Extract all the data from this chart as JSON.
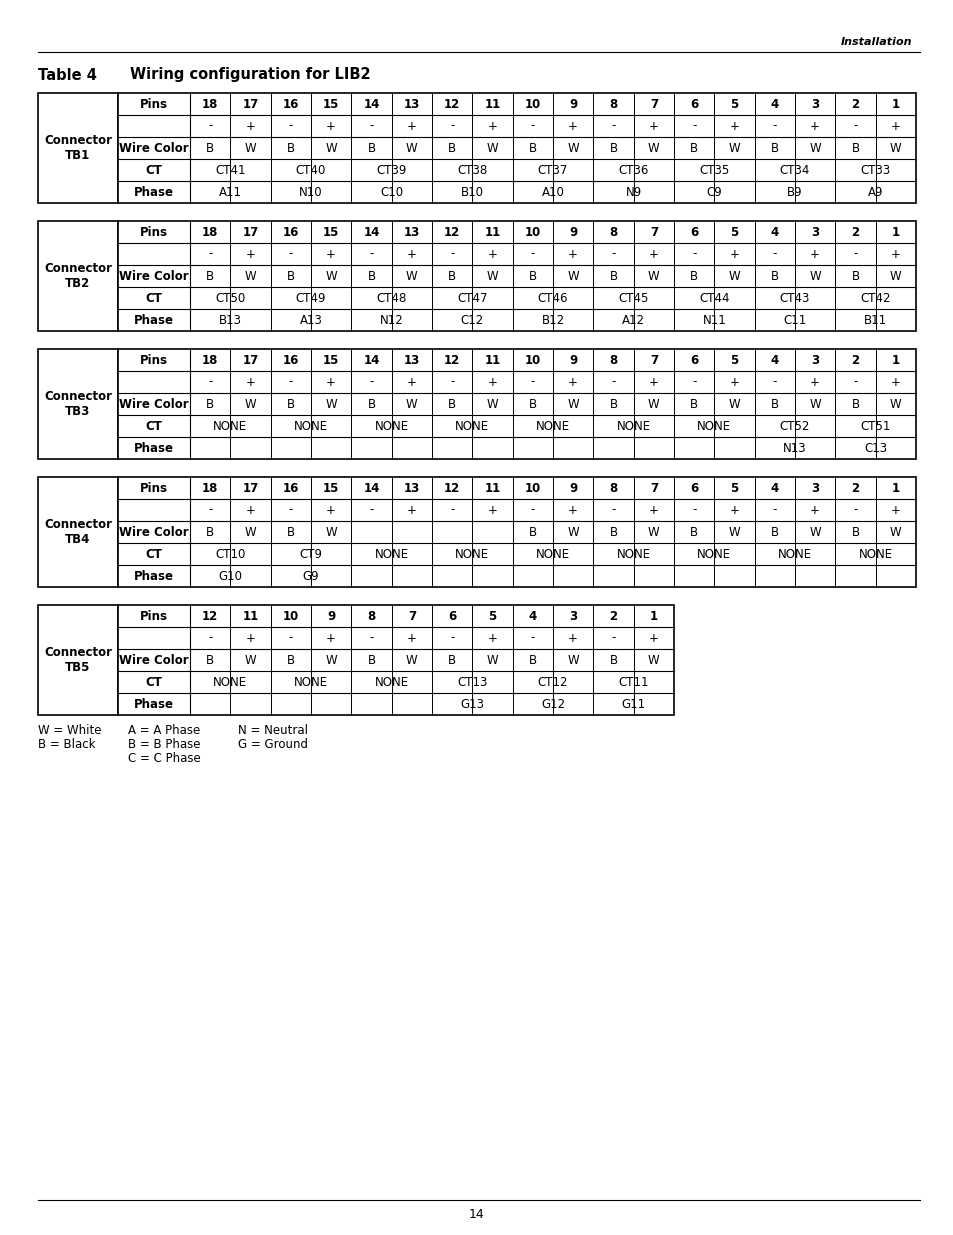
{
  "title_label": "Table 4",
  "title_text": "Wiring configuration for LIB2",
  "header_right": "Installation",
  "page_number": "14",
  "tables": [
    {
      "connector": "Connector\nTB1",
      "pins": [
        "18",
        "17",
        "16",
        "15",
        "14",
        "13",
        "12",
        "11",
        "10",
        "9",
        "8",
        "7",
        "6",
        "5",
        "4",
        "3",
        "2",
        "1"
      ],
      "polarity": [
        "-",
        "+",
        "-",
        "+",
        "-",
        "+",
        "-",
        "+",
        "-",
        "+",
        "-",
        "+",
        "-",
        "+",
        "-",
        "+",
        "-",
        "+"
      ],
      "wire_color": [
        "B",
        "W",
        "B",
        "W",
        "B",
        "W",
        "B",
        "W",
        "B",
        "W",
        "B",
        "W",
        "B",
        "W",
        "B",
        "W",
        "B",
        "W"
      ],
      "ct_spans": [
        {
          "text": "CT41",
          "cols": [
            0,
            1
          ]
        },
        {
          "text": "CT40",
          "cols": [
            2,
            3
          ]
        },
        {
          "text": "CT39",
          "cols": [
            4,
            5
          ]
        },
        {
          "text": "CT38",
          "cols": [
            6,
            7
          ]
        },
        {
          "text": "CT37",
          "cols": [
            8,
            9
          ]
        },
        {
          "text": "CT36",
          "cols": [
            10,
            11
          ]
        },
        {
          "text": "CT35",
          "cols": [
            12,
            13
          ]
        },
        {
          "text": "CT34",
          "cols": [
            14,
            15
          ]
        },
        {
          "text": "CT33",
          "cols": [
            16,
            17
          ]
        }
      ],
      "phase_spans": [
        {
          "text": "A11",
          "cols": [
            0,
            1
          ]
        },
        {
          "text": "N10",
          "cols": [
            2,
            3
          ]
        },
        {
          "text": "C10",
          "cols": [
            4,
            5
          ]
        },
        {
          "text": "B10",
          "cols": [
            6,
            7
          ]
        },
        {
          "text": "A10",
          "cols": [
            8,
            9
          ]
        },
        {
          "text": "N9",
          "cols": [
            10,
            11
          ]
        },
        {
          "text": "C9",
          "cols": [
            12,
            13
          ]
        },
        {
          "text": "B9",
          "cols": [
            14,
            15
          ]
        },
        {
          "text": "A9",
          "cols": [
            16,
            17
          ]
        }
      ]
    },
    {
      "connector": "Connector\nTB2",
      "pins": [
        "18",
        "17",
        "16",
        "15",
        "14",
        "13",
        "12",
        "11",
        "10",
        "9",
        "8",
        "7",
        "6",
        "5",
        "4",
        "3",
        "2",
        "1"
      ],
      "polarity": [
        "-",
        "+",
        "-",
        "+",
        "-",
        "+",
        "-",
        "+",
        "-",
        "+",
        "-",
        "+",
        "-",
        "+",
        "-",
        "+",
        "-",
        "+"
      ],
      "wire_color": [
        "B",
        "W",
        "B",
        "W",
        "B",
        "W",
        "B",
        "W",
        "B",
        "W",
        "B",
        "W",
        "B",
        "W",
        "B",
        "W",
        "B",
        "W"
      ],
      "ct_spans": [
        {
          "text": "CT50",
          "cols": [
            0,
            1
          ]
        },
        {
          "text": "CT49",
          "cols": [
            2,
            3
          ]
        },
        {
          "text": "CT48",
          "cols": [
            4,
            5
          ]
        },
        {
          "text": "CT47",
          "cols": [
            6,
            7
          ]
        },
        {
          "text": "CT46",
          "cols": [
            8,
            9
          ]
        },
        {
          "text": "CT45",
          "cols": [
            10,
            11
          ]
        },
        {
          "text": "CT44",
          "cols": [
            12,
            13
          ]
        },
        {
          "text": "CT43",
          "cols": [
            14,
            15
          ]
        },
        {
          "text": "CT42",
          "cols": [
            16,
            17
          ]
        }
      ],
      "phase_spans": [
        {
          "text": "B13",
          "cols": [
            0,
            1
          ]
        },
        {
          "text": "A13",
          "cols": [
            2,
            3
          ]
        },
        {
          "text": "N12",
          "cols": [
            4,
            5
          ]
        },
        {
          "text": "C12",
          "cols": [
            6,
            7
          ]
        },
        {
          "text": "B12",
          "cols": [
            8,
            9
          ]
        },
        {
          "text": "A12",
          "cols": [
            10,
            11
          ]
        },
        {
          "text": "N11",
          "cols": [
            12,
            13
          ]
        },
        {
          "text": "C11",
          "cols": [
            14,
            15
          ]
        },
        {
          "text": "B11",
          "cols": [
            16,
            17
          ]
        }
      ]
    },
    {
      "connector": "Connector\nTB3",
      "pins": [
        "18",
        "17",
        "16",
        "15",
        "14",
        "13",
        "12",
        "11",
        "10",
        "9",
        "8",
        "7",
        "6",
        "5",
        "4",
        "3",
        "2",
        "1"
      ],
      "polarity": [
        "-",
        "+",
        "-",
        "+",
        "-",
        "+",
        "-",
        "+",
        "-",
        "+",
        "-",
        "+",
        "-",
        "+",
        "-",
        "+",
        "-",
        "+"
      ],
      "wire_color": [
        "B",
        "W",
        "B",
        "W",
        "B",
        "W",
        "B",
        "W",
        "B",
        "W",
        "B",
        "W",
        "B",
        "W",
        "B",
        "W",
        "B",
        "W"
      ],
      "ct_spans": [
        {
          "text": "NONE",
          "cols": [
            0,
            1
          ]
        },
        {
          "text": "NONE",
          "cols": [
            2,
            3
          ]
        },
        {
          "text": "NONE",
          "cols": [
            4,
            5
          ]
        },
        {
          "text": "NONE",
          "cols": [
            6,
            7
          ]
        },
        {
          "text": "NONE",
          "cols": [
            8,
            9
          ]
        },
        {
          "text": "NONE",
          "cols": [
            10,
            11
          ]
        },
        {
          "text": "NONE",
          "cols": [
            12,
            13
          ]
        },
        {
          "text": "CT52",
          "cols": [
            14,
            15
          ]
        },
        {
          "text": "CT51",
          "cols": [
            16,
            17
          ]
        }
      ],
      "phase_spans": [
        {
          "text": "",
          "cols": [
            0,
            1
          ]
        },
        {
          "text": "",
          "cols": [
            2,
            3
          ]
        },
        {
          "text": "",
          "cols": [
            4,
            5
          ]
        },
        {
          "text": "",
          "cols": [
            6,
            7
          ]
        },
        {
          "text": "",
          "cols": [
            8,
            9
          ]
        },
        {
          "text": "",
          "cols": [
            10,
            11
          ]
        },
        {
          "text": "",
          "cols": [
            12,
            13
          ]
        },
        {
          "text": "N13",
          "cols": [
            14,
            15
          ]
        },
        {
          "text": "C13",
          "cols": [
            16,
            17
          ]
        }
      ]
    },
    {
      "connector": "Connector\nTB4",
      "pins": [
        "18",
        "17",
        "16",
        "15",
        "14",
        "13",
        "12",
        "11",
        "10",
        "9",
        "8",
        "7",
        "6",
        "5",
        "4",
        "3",
        "2",
        "1"
      ],
      "polarity": [
        "-",
        "+",
        "-",
        "+",
        "-",
        "+",
        "-",
        "+",
        "-",
        "+",
        "-",
        "+",
        "-",
        "+",
        "-",
        "+",
        "-",
        "+"
      ],
      "wire_color": [
        "B",
        "W",
        "B",
        "W",
        "",
        "",
        "",
        "",
        "B",
        "W",
        "B",
        "W",
        "B",
        "W",
        "B",
        "W",
        "B",
        "W"
      ],
      "ct_spans": [
        {
          "text": "CT10",
          "cols": [
            0,
            1
          ]
        },
        {
          "text": "CT9",
          "cols": [
            2,
            3
          ]
        },
        {
          "text": "NONE",
          "cols": [
            4,
            5
          ]
        },
        {
          "text": "NONE",
          "cols": [
            6,
            7
          ]
        },
        {
          "text": "NONE",
          "cols": [
            8,
            9
          ]
        },
        {
          "text": "NONE",
          "cols": [
            10,
            11
          ]
        },
        {
          "text": "NONE",
          "cols": [
            12,
            13
          ]
        },
        {
          "text": "NONE",
          "cols": [
            14,
            15
          ]
        },
        {
          "text": "NONE",
          "cols": [
            16,
            17
          ]
        }
      ],
      "phase_spans": [
        {
          "text": "G10",
          "cols": [
            0,
            1
          ]
        },
        {
          "text": "G9",
          "cols": [
            2,
            3
          ]
        },
        {
          "text": "",
          "cols": [
            4,
            5
          ]
        },
        {
          "text": "",
          "cols": [
            6,
            7
          ]
        },
        {
          "text": "",
          "cols": [
            8,
            9
          ]
        },
        {
          "text": "",
          "cols": [
            10,
            11
          ]
        },
        {
          "text": "",
          "cols": [
            12,
            13
          ]
        },
        {
          "text": "",
          "cols": [
            14,
            15
          ]
        },
        {
          "text": "",
          "cols": [
            16,
            17
          ]
        }
      ]
    }
  ],
  "table5": {
    "connector": "Connector\nTB5",
    "pins": [
      "12",
      "11",
      "10",
      "9",
      "8",
      "7",
      "6",
      "5",
      "4",
      "3",
      "2",
      "1"
    ],
    "polarity": [
      "-",
      "+",
      "-",
      "+",
      "-",
      "+",
      "-",
      "+",
      "-",
      "+",
      "-",
      "+"
    ],
    "wire_color": [
      "B",
      "W",
      "B",
      "W",
      "B",
      "W",
      "B",
      "W",
      "B",
      "W",
      "B",
      "W"
    ],
    "ct_spans": [
      {
        "text": "NONE",
        "cols": [
          0,
          1
        ]
      },
      {
        "text": "NONE",
        "cols": [
          2,
          3
        ]
      },
      {
        "text": "NONE",
        "cols": [
          4,
          5
        ]
      },
      {
        "text": "CT13",
        "cols": [
          6,
          7
        ]
      },
      {
        "text": "CT12",
        "cols": [
          8,
          9
        ]
      },
      {
        "text": "CT11",
        "cols": [
          10,
          11
        ]
      }
    ],
    "phase_spans": [
      {
        "text": "",
        "cols": [
          0,
          1
        ]
      },
      {
        "text": "",
        "cols": [
          2,
          3
        ]
      },
      {
        "text": "",
        "cols": [
          4,
          5
        ]
      },
      {
        "text": "G13",
        "cols": [
          6,
          7
        ]
      },
      {
        "text": "G12",
        "cols": [
          8,
          9
        ]
      },
      {
        "text": "G11",
        "cols": [
          10,
          11
        ]
      }
    ]
  }
}
